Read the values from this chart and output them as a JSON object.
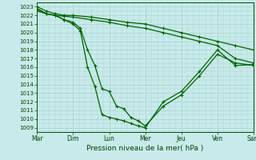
{
  "xlabel": "Pression niveau de la mer( hPa )",
  "background_color": "#c8eaea",
  "grid_color": "#a8d0d0",
  "line_color": "#006400",
  "ylim": [
    1009,
    1023
  ],
  "yticks": [
    1009,
    1010,
    1011,
    1012,
    1013,
    1014,
    1015,
    1016,
    1017,
    1018,
    1019,
    1020,
    1021,
    1022,
    1023
  ],
  "x_labels": [
    "Mar",
    "Dim",
    "Lun",
    "Mer",
    "Jeu",
    "Ven",
    "Sam"
  ],
  "l1_x": [
    0.0,
    0.25,
    0.5,
    0.75,
    1.0,
    1.5,
    2.0,
    2.5,
    3.0,
    3.5,
    4.0,
    4.5,
    5.0,
    5.5,
    6.0
  ],
  "l1_y": [
    1023.0,
    1022.5,
    1022.2,
    1022.0,
    1022.0,
    1021.8,
    1021.5,
    1021.2,
    1021.0,
    1020.5,
    1020.0,
    1019.5,
    1019.0,
    1018.5,
    1018.0
  ],
  "l2_x": [
    0.0,
    0.25,
    0.5,
    0.75,
    1.0,
    1.5,
    2.0,
    2.5,
    3.0,
    3.5,
    4.0,
    4.5,
    5.0,
    5.5,
    6.0
  ],
  "l2_y": [
    1022.8,
    1022.2,
    1022.0,
    1021.9,
    1021.8,
    1021.5,
    1021.2,
    1020.8,
    1020.5,
    1020.0,
    1019.5,
    1019.0,
    1018.5,
    1017.0,
    1016.5
  ],
  "l3_x": [
    0.0,
    0.25,
    0.5,
    0.75,
    1.0,
    1.2,
    1.4,
    1.6,
    1.8,
    2.0,
    2.2,
    2.4,
    2.6,
    2.8,
    3.0,
    3.5,
    4.0,
    4.5,
    5.0,
    5.5,
    6.0
  ],
  "l3_y": [
    1022.5,
    1022.2,
    1022.0,
    1021.5,
    1021.2,
    1020.5,
    1018.0,
    1016.2,
    1013.5,
    1013.2,
    1011.5,
    1011.2,
    1010.2,
    1009.8,
    1009.2,
    1011.5,
    1012.8,
    1015.0,
    1017.5,
    1016.5,
    1016.2
  ],
  "l4_x": [
    0.0,
    0.25,
    0.5,
    0.75,
    1.0,
    1.2,
    1.4,
    1.6,
    1.8,
    2.0,
    2.2,
    2.4,
    2.6,
    2.8,
    3.0,
    3.5,
    4.0,
    4.5,
    5.0,
    5.5,
    6.0
  ],
  "l4_y": [
    1022.7,
    1022.2,
    1022.0,
    1021.5,
    1021.0,
    1020.2,
    1016.0,
    1013.8,
    1010.5,
    1010.2,
    1010.0,
    1009.8,
    1009.5,
    1009.2,
    1009.0,
    1012.0,
    1013.2,
    1015.5,
    1018.0,
    1016.2,
    1016.3
  ]
}
